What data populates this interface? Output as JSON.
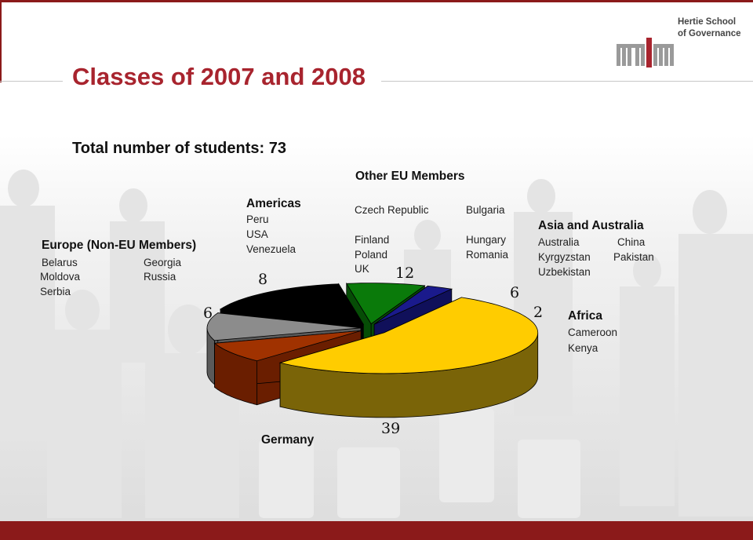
{
  "slide": {
    "title": "Classes of 2007 and 2008",
    "organization_line1": "Hertie School",
    "organization_line2": "of Governance",
    "logo_text": "MPP",
    "total_students": "Total number of students: 73"
  },
  "regions": {
    "europe_non_eu": {
      "title": "Europe (Non-EU Members)",
      "countries": [
        "Belarus",
        "Georgia",
        "Moldova",
        "Russia",
        "Serbia"
      ]
    },
    "americas": {
      "title": "Americas",
      "countries": [
        "Peru",
        "USA",
        "Venezuela"
      ]
    },
    "other_eu": {
      "title": "Other EU Members",
      "countries": [
        "Czech Republic",
        "Bulgaria",
        "Finland",
        "Hungary",
        "Poland",
        "Romania",
        "UK"
      ]
    },
    "asia_australia": {
      "title": "Asia and Australia",
      "countries": [
        "Australia",
        "China",
        "Kyrgyzstan",
        "Pakistan",
        "Uzbekistan"
      ]
    },
    "africa": {
      "title": "Africa",
      "countries": [
        "Cameroon",
        "Kenya"
      ]
    },
    "germany": {
      "title": "Germany"
    }
  },
  "chart_data": {
    "type": "pie",
    "style": "3d-exploded",
    "categories": [
      "Other EU Members",
      "Asia and Australia",
      "Africa",
      "Germany",
      "Europe (Non-EU Members)",
      "Americas"
    ],
    "values": [
      12,
      6,
      2,
      39,
      6,
      8
    ],
    "value_labels": [
      "12",
      "6",
      "2",
      "39",
      "6",
      "8"
    ],
    "colors": [
      "#000000",
      "#0a7a0a",
      "#1a1a8c",
      "#ffcc00",
      "#a03200",
      "#8c8c8c"
    ],
    "side_colors": [
      "#000000",
      "#064d06",
      "#10105a",
      "#7a6408",
      "#6a1e00",
      "#5a5a5a"
    ],
    "total": 73
  },
  "theme": {
    "accent": "#a8242e",
    "footer": "#8b1a1a"
  }
}
